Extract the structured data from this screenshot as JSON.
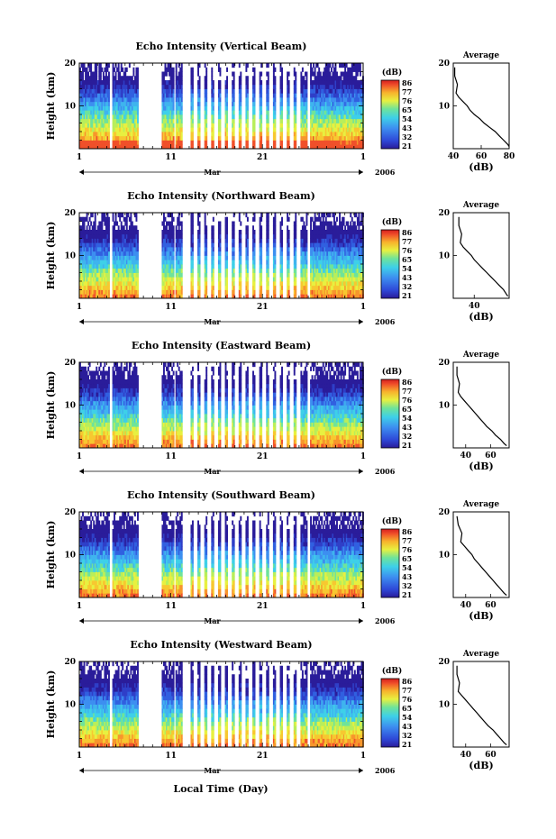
{
  "figure": {
    "xlabel": "Local Time (Day)",
    "year": "2006",
    "month_label": "Mar",
    "x_ticks": [
      "1",
      "11",
      "21",
      "1"
    ],
    "y_ticks": [
      "20",
      "10"
    ],
    "ylabel": "Height (km)",
    "colorbar_unit": "(dB)",
    "colorbar_ticks": [
      "86",
      "77",
      "76",
      "65",
      "54",
      "43",
      "32",
      "21"
    ],
    "average_title": "Average",
    "average_xlabel": "(dB)"
  },
  "chart_data": [
    {
      "type": "heatmap",
      "title": "Echo Intensity (Vertical Beam)",
      "xlabel": "Mar",
      "ylabel": "Height (km)",
      "x_range_days": [
        1,
        32
      ],
      "y_range_km": [
        0,
        20
      ],
      "colorbar": {
        "unit": "(dB)",
        "ticks": [
          86,
          77,
          76,
          65,
          54,
          43,
          32,
          21
        ]
      },
      "data_gaps_days": [
        [
          4.2,
          4.6
        ],
        [
          7.4,
          10.0
        ],
        [
          11.3,
          11.5
        ],
        [
          12.2,
          13.1
        ]
      ],
      "average_profile": {
        "title": "Average",
        "xlabel": "(dB)",
        "xticks": [
          40,
          60,
          80
        ],
        "xlim": [
          40,
          80
        ],
        "yticks": [
          10,
          20
        ],
        "ylim": [
          0,
          20
        ],
        "height_km": [
          19,
          17,
          15,
          13,
          12,
          11,
          10,
          9,
          8,
          7,
          6,
          5,
          4,
          3,
          2,
          1,
          0.5
        ],
        "intensity_db": [
          41,
          41,
          43,
          42,
          44,
          47,
          50,
          52,
          55,
          59,
          62,
          66,
          70,
          73,
          76,
          79,
          80
        ]
      }
    },
    {
      "type": "heatmap",
      "title": "Echo Intensity (Northward Beam)",
      "xlabel": "Mar",
      "ylabel": "Height (km)",
      "x_range_days": [
        1,
        32
      ],
      "y_range_km": [
        0,
        20
      ],
      "colorbar": {
        "unit": "(dB)",
        "ticks": [
          86,
          77,
          76,
          65,
          54,
          43,
          32,
          21
        ]
      },
      "data_gaps_days": [
        [
          4.2,
          4.6
        ],
        [
          7.4,
          10.0
        ],
        [
          11.3,
          11.5
        ],
        [
          12.2,
          13.1
        ]
      ],
      "average_profile": {
        "title": "Average",
        "xlabel": "(dB)",
        "xticks": [
          40
        ],
        "xlim": [
          25,
          65
        ],
        "yticks": [
          10,
          20
        ],
        "ylim": [
          0,
          20
        ],
        "height_km": [
          19,
          17,
          15,
          13,
          12,
          11,
          10,
          9,
          8,
          7,
          6,
          5,
          4,
          3,
          2,
          1,
          0.5
        ],
        "intensity_db": [
          29,
          29,
          31,
          30,
          32,
          35,
          38,
          40,
          43,
          46,
          49,
          52,
          55,
          58,
          61,
          63,
          64
        ]
      }
    },
    {
      "type": "heatmap",
      "title": "Echo Intensity (Eastward Beam)",
      "xlabel": "Mar",
      "ylabel": "Height (km)",
      "x_range_days": [
        1,
        32
      ],
      "y_range_km": [
        0,
        20
      ],
      "colorbar": {
        "unit": "(dB)",
        "ticks": [
          86,
          77,
          76,
          65,
          54,
          43,
          32,
          21
        ]
      },
      "data_gaps_days": [
        [
          4.2,
          4.6
        ],
        [
          7.4,
          10.0
        ],
        [
          11.3,
          11.5
        ],
        [
          12.2,
          13.1
        ]
      ],
      "average_profile": {
        "title": "Average",
        "xlabel": "(dB)",
        "xticks": [
          40,
          60
        ],
        "xlim": [
          30,
          75
        ],
        "yticks": [
          10,
          20
        ],
        "ylim": [
          0,
          20
        ],
        "height_km": [
          19,
          17,
          15,
          13,
          12,
          11,
          10,
          9,
          8,
          7,
          6,
          5,
          4,
          3,
          2,
          1,
          0.5
        ],
        "intensity_db": [
          33,
          33,
          35,
          34,
          36,
          39,
          42,
          45,
          48,
          51,
          54,
          57,
          61,
          64,
          68,
          71,
          73
        ]
      }
    },
    {
      "type": "heatmap",
      "title": "Echo Intensity (Southward Beam)",
      "xlabel": "Mar",
      "ylabel": "Height (km)",
      "x_range_days": [
        1,
        32
      ],
      "y_range_km": [
        0,
        20
      ],
      "colorbar": {
        "unit": "(dB)",
        "ticks": [
          86,
          77,
          76,
          65,
          54,
          43,
          32,
          21
        ]
      },
      "data_gaps_days": [
        [
          4.2,
          4.6
        ],
        [
          7.4,
          10.0
        ],
        [
          11.3,
          11.5
        ],
        [
          12.2,
          13.1
        ]
      ],
      "average_profile": {
        "title": "Average",
        "xlabel": "(dB)",
        "xticks": [
          40,
          60
        ],
        "xlim": [
          30,
          75
        ],
        "yticks": [
          10,
          20
        ],
        "ylim": [
          0,
          20
        ],
        "height_km": [
          19,
          17,
          15,
          13,
          12,
          11,
          10,
          9,
          8,
          7,
          6,
          5,
          4,
          3,
          2,
          1,
          0.5
        ],
        "intensity_db": [
          33,
          34,
          37,
          36,
          39,
          42,
          45,
          47,
          50,
          53,
          56,
          59,
          62,
          65,
          68,
          71,
          73
        ]
      }
    },
    {
      "type": "heatmap",
      "title": "Echo Intensity (Westward Beam)",
      "xlabel": "Mar",
      "ylabel": "Height (km)",
      "x_range_days": [
        1,
        32
      ],
      "y_range_km": [
        0,
        20
      ],
      "colorbar": {
        "unit": "(dB)",
        "ticks": [
          86,
          77,
          76,
          65,
          54,
          43,
          32,
          21
        ]
      },
      "data_gaps_days": [
        [
          4.2,
          4.6
        ],
        [
          7.4,
          10.0
        ],
        [
          11.3,
          11.5
        ],
        [
          12.2,
          13.1
        ]
      ],
      "average_profile": {
        "title": "Average",
        "xlabel": "(dB)",
        "xticks": [
          40,
          60
        ],
        "xlim": [
          30,
          75
        ],
        "yticks": [
          10,
          20
        ],
        "ylim": [
          0,
          20
        ],
        "height_km": [
          19,
          17,
          15,
          13,
          12,
          11,
          10,
          9,
          8,
          7,
          6,
          5,
          4,
          3,
          2,
          1,
          0.5
        ],
        "intensity_db": [
          33,
          33,
          35,
          34,
          37,
          40,
          43,
          46,
          49,
          52,
          55,
          58,
          62,
          65,
          68,
          71,
          73
        ]
      }
    }
  ]
}
